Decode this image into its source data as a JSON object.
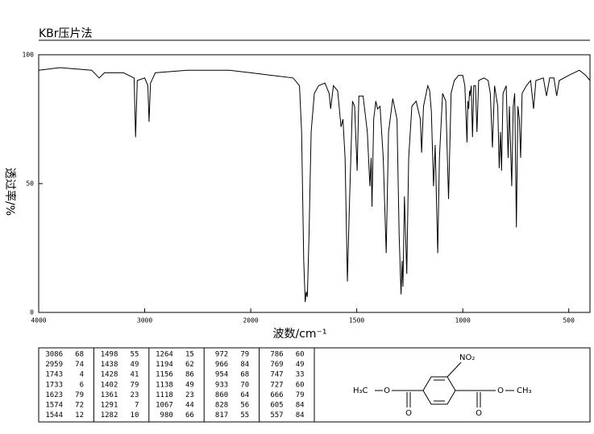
{
  "chart_data": {
    "type": "line",
    "title": "KBr压片法",
    "x_label": "波数/cm⁻¹",
    "y_label": "透过率/%",
    "color": "#000000",
    "xlim": [
      4000,
      400
    ],
    "xticks": [
      4000,
      3000,
      2000,
      1500,
      1000,
      500
    ],
    "ylim": [
      0,
      100
    ],
    "yticks": [
      0,
      50,
      100
    ],
    "x": [
      4000,
      3800,
      3500,
      3430,
      3380,
      3200,
      3100,
      3086,
      3070,
      3000,
      2970,
      2959,
      2945,
      2900,
      2600,
      2200,
      2000,
      1900,
      1800,
      1770,
      1760,
      1750,
      1743,
      1738,
      1733,
      1725,
      1715,
      1700,
      1680,
      1650,
      1630,
      1623,
      1610,
      1590,
      1574,
      1565,
      1555,
      1544,
      1535,
      1520,
      1510,
      1498,
      1490,
      1470,
      1450,
      1438,
      1432,
      1428,
      1420,
      1410,
      1402,
      1390,
      1375,
      1361,
      1350,
      1330,
      1310,
      1300,
      1291,
      1286,
      1282,
      1275,
      1264,
      1255,
      1240,
      1220,
      1200,
      1194,
      1185,
      1165,
      1156,
      1148,
      1138,
      1130,
      1118,
      1110,
      1095,
      1080,
      1067,
      1055,
      1040,
      1020,
      1000,
      990,
      980,
      976,
      972,
      968,
      966,
      960,
      954,
      948,
      940,
      933,
      925,
      900,
      880,
      870,
      860,
      850,
      835,
      828,
      822,
      817,
      810,
      795,
      786,
      780,
      769,
      762,
      755,
      747,
      740,
      733,
      727,
      720,
      700,
      680,
      666,
      655,
      620,
      605,
      590,
      570,
      557,
      545,
      500,
      450,
      420,
      400
    ],
    "values": [
      94,
      95,
      94,
      91,
      93,
      93,
      91,
      68,
      90,
      91,
      88,
      74,
      89,
      93,
      94,
      94,
      93,
      92,
      91,
      88,
      70,
      20,
      4,
      8,
      6,
      30,
      70,
      85,
      88,
      89,
      85,
      79,
      88,
      86,
      72,
      75,
      60,
      12,
      40,
      82,
      80,
      55,
      84,
      84,
      70,
      49,
      60,
      41,
      75,
      82,
      79,
      80,
      60,
      23,
      70,
      83,
      75,
      30,
      7,
      20,
      10,
      45,
      15,
      60,
      80,
      82,
      75,
      62,
      80,
      88,
      86,
      78,
      49,
      65,
      23,
      60,
      85,
      82,
      44,
      85,
      90,
      92,
      92,
      88,
      66,
      82,
      79,
      86,
      84,
      88,
      68,
      88,
      88,
      70,
      90,
      91,
      90,
      85,
      64,
      88,
      80,
      56,
      70,
      55,
      85,
      88,
      60,
      80,
      49,
      80,
      85,
      33,
      80,
      75,
      60,
      85,
      88,
      90,
      79,
      90,
      91,
      84,
      91,
      91,
      84,
      90,
      92,
      94,
      92,
      90
    ]
  },
  "peaks": [
    [
      3086,
      68
    ],
    [
      2959,
      74
    ],
    [
      1743,
      4
    ],
    [
      1733,
      6
    ],
    [
      1623,
      79
    ],
    [
      1574,
      72
    ],
    [
      1544,
      12
    ],
    [
      1498,
      55
    ],
    [
      1438,
      49
    ],
    [
      1428,
      41
    ],
    [
      1402,
      79
    ],
    [
      1361,
      23
    ],
    [
      1291,
      7
    ],
    [
      1282,
      10
    ],
    [
      1264,
      15
    ],
    [
      1194,
      62
    ],
    [
      1156,
      86
    ],
    [
      1138,
      49
    ],
    [
      1118,
      23
    ],
    [
      1067,
      44
    ],
    [
      980,
      66
    ],
    [
      972,
      79
    ],
    [
      966,
      84
    ],
    [
      954,
      68
    ],
    [
      933,
      70
    ],
    [
      860,
      64
    ],
    [
      828,
      56
    ],
    [
      817,
      55
    ],
    [
      786,
      60
    ],
    [
      769,
      49
    ],
    [
      747,
      33
    ],
    [
      727,
      60
    ],
    [
      666,
      79
    ],
    [
      605,
      84
    ],
    [
      557,
      84
    ]
  ],
  "structure": {
    "nitro": "NO₂",
    "left_methyl": "H₃C",
    "left_ether_o": "O",
    "left_carbonyl_o": "O",
    "right_carbonyl_o": "O",
    "right_ether_o": "O",
    "right_methyl": "CH₃"
  }
}
